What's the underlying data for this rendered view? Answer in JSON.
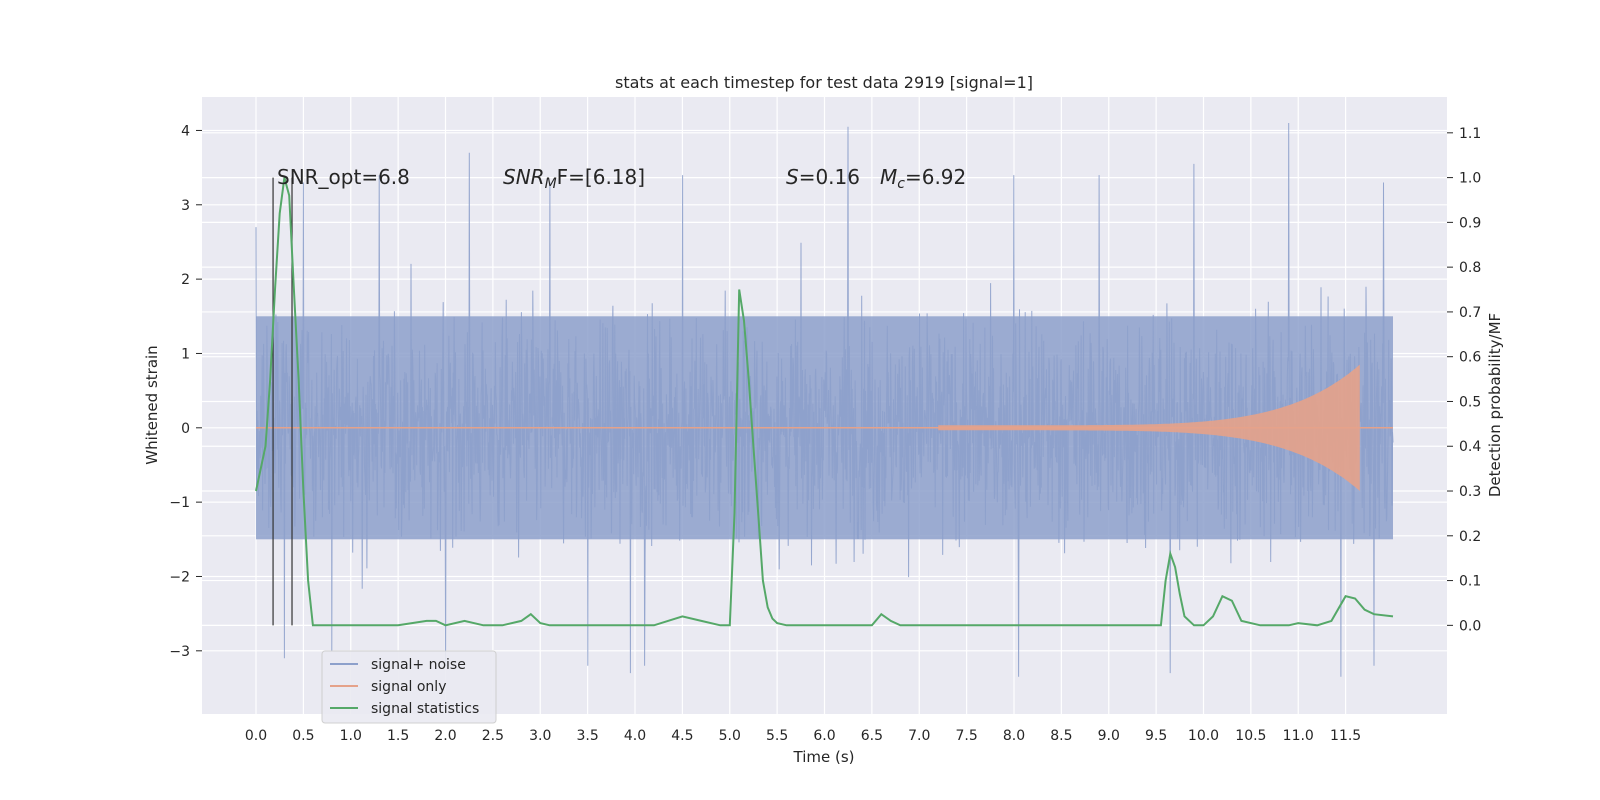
{
  "chart_data": {
    "type": "line",
    "title": "stats at each timestep for test data 2919 [signal=1]",
    "xlabel": "Time (s)",
    "ylabel_left": "Whitened strain",
    "ylabel_right": "Detection probability/MF",
    "xlim": [
      -0.57,
      12.57
    ],
    "ylim_left": [
      -3.85,
      4.45
    ],
    "ylim_right": [
      -0.198,
      1.18
    ],
    "x_ticks": [
      "0.0",
      "0.5",
      "1.0",
      "1.5",
      "2.0",
      "2.5",
      "3.0",
      "3.5",
      "4.0",
      "4.5",
      "5.0",
      "5.5",
      "6.0",
      "6.5",
      "7.0",
      "7.5",
      "8.0",
      "8.5",
      "9.0",
      "9.5",
      "10.0",
      "10.5",
      "11.0",
      "11.5"
    ],
    "y_left_ticks": [
      "−3",
      "−2",
      "−1",
      "0",
      "1",
      "2",
      "3",
      "4"
    ],
    "y_right_ticks": [
      "0.0",
      "0.1",
      "0.2",
      "0.3",
      "0.4",
      "0.5",
      "0.6",
      "0.7",
      "0.8",
      "0.9",
      "1.0",
      "1.1"
    ],
    "grid": true,
    "legend_position": "lower-left",
    "annotations": {
      "snr_opt": "SNR_opt=6.8",
      "snr_mf_sym": "SNR",
      "snr_mf_sub": "M",
      "snr_mf_rest": "F=[6.18]",
      "s_sym": "S",
      "s_val": "=0.16",
      "mc_sym": "M",
      "mc_sub": "c",
      "mc_val": "=6.92"
    },
    "vertical_lines": [
      0.18,
      0.38
    ],
    "series": [
      {
        "name": "signal+ noise",
        "color": "#8da0cb",
        "t_range": [
          0.0,
          12.0
        ],
        "band_core": [
          -1.5,
          1.5
        ],
        "peaks_up": [
          [
            0.0,
            2.7
          ],
          [
            0.5,
            3.3
          ],
          [
            1.3,
            3.4
          ],
          [
            2.25,
            3.7
          ],
          [
            3.1,
            3.3
          ],
          [
            4.5,
            3.4
          ],
          [
            6.25,
            4.05
          ],
          [
            8.0,
            3.4
          ],
          [
            8.9,
            3.4
          ],
          [
            9.9,
            3.55
          ],
          [
            10.9,
            4.1
          ],
          [
            11.9,
            3.3
          ]
        ],
        "peaks_down": [
          [
            0.3,
            -3.1
          ],
          [
            0.8,
            -3.0
          ],
          [
            2.0,
            -3.2
          ],
          [
            3.5,
            -3.2
          ],
          [
            3.95,
            -3.3
          ],
          [
            4.1,
            -3.2
          ],
          [
            8.05,
            -3.35
          ],
          [
            9.65,
            -3.3
          ],
          [
            11.45,
            -3.35
          ],
          [
            11.8,
            -3.2
          ]
        ]
      },
      {
        "name": "signal only",
        "color": "#e5a28a",
        "chirp_start": 7.2,
        "chirp_end": 11.65,
        "max_amplitude": 0.85
      },
      {
        "name": "signal statistics",
        "color": "#55a868",
        "axis": "right",
        "x": [
          0.0,
          0.1,
          0.15,
          0.2,
          0.25,
          0.3,
          0.35,
          0.4,
          0.45,
          0.5,
          0.55,
          0.6,
          0.7,
          1.0,
          1.5,
          1.8,
          1.9,
          2.0,
          2.2,
          2.4,
          2.6,
          2.8,
          2.9,
          3.0,
          3.1,
          3.3,
          3.6,
          4.0,
          4.2,
          4.5,
          4.7,
          4.9,
          5.0,
          5.05,
          5.1,
          5.15,
          5.2,
          5.25,
          5.3,
          5.35,
          5.4,
          5.45,
          5.5,
          5.6,
          5.8,
          6.0,
          6.3,
          6.5,
          6.6,
          6.7,
          6.8,
          7.0,
          7.5,
          8.0,
          8.5,
          9.0,
          9.5,
          9.55,
          9.6,
          9.65,
          9.7,
          9.75,
          9.8,
          9.9,
          10.0,
          10.1,
          10.2,
          10.3,
          10.4,
          10.6,
          10.9,
          11.0,
          11.2,
          11.35,
          11.5,
          11.6,
          11.7,
          11.8,
          12.0
        ],
        "y": [
          0.3,
          0.4,
          0.55,
          0.75,
          0.92,
          1.0,
          0.96,
          0.75,
          0.55,
          0.3,
          0.1,
          0.0,
          0.0,
          0.0,
          0.0,
          0.01,
          0.01,
          0.0,
          0.01,
          0.0,
          0.0,
          0.01,
          0.025,
          0.005,
          0.0,
          0.0,
          0.0,
          0.0,
          0.0,
          0.02,
          0.01,
          0.0,
          0.0,
          0.25,
          0.75,
          0.68,
          0.55,
          0.4,
          0.25,
          0.1,
          0.04,
          0.015,
          0.005,
          0.0,
          0.0,
          0.0,
          0.0,
          0.0,
          0.025,
          0.01,
          0.0,
          0.0,
          0.0,
          0.0,
          0.0,
          0.0,
          0.0,
          0.0,
          0.1,
          0.16,
          0.13,
          0.07,
          0.02,
          0.0,
          0.0,
          0.02,
          0.065,
          0.055,
          0.01,
          0.0,
          0.0,
          0.005,
          0.0,
          0.01,
          0.065,
          0.06,
          0.035,
          0.025,
          0.02
        ]
      }
    ]
  }
}
